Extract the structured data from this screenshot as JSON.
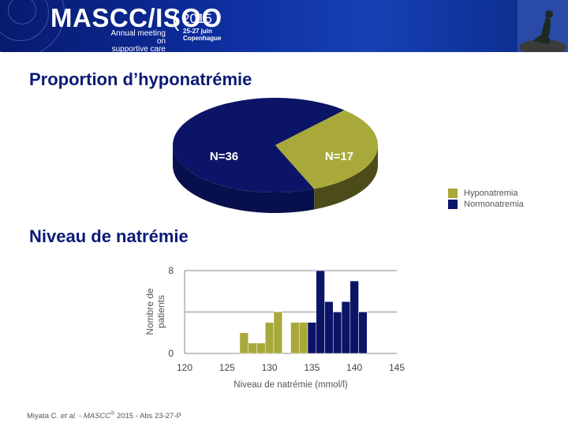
{
  "banner": {
    "brand": "MASCC/ISOO",
    "subtitle_line1": "Annual meeting on",
    "subtitle_line2": "supportive care in cancer",
    "year": "2015",
    "dates": "25-27 juin",
    "city": "Copenhague"
  },
  "section1": {
    "title": "Proportion d’hyponatrémie"
  },
  "section2": {
    "title": "Niveau de natrémie"
  },
  "legend": [
    {
      "label": "Hyponatremia",
      "color": "#a9a93b"
    },
    {
      "label": "Normonatremia",
      "color": "#0b1466"
    }
  ],
  "chart_data": [
    {
      "type": "pie",
      "slices": [
        {
          "label": "N=36",
          "series": "Normonatremia",
          "value": 36,
          "color": "#0b1466"
        },
        {
          "label": "N=17",
          "series": "Hyponatremia",
          "value": 17,
          "color": "#a9a93b"
        }
      ]
    },
    {
      "type": "bar",
      "xlabel": "Niveau de natrémie (mmol/l)",
      "ylabel": "Nombre de patients",
      "ylabel_lines": [
        "Nombre de",
        "patients"
      ],
      "xlim": [
        120,
        145
      ],
      "ylim": [
        0,
        8
      ],
      "xticks": [
        "120",
        "125",
        "130",
        "135",
        "140",
        "145"
      ],
      "yticks": [
        "0",
        "8"
      ],
      "gridlines": [
        4,
        8
      ],
      "series": [
        {
          "name": "Hyponatremia",
          "color": "#a9a93b",
          "bins": [
            [
              127,
              2
            ],
            [
              128,
              1
            ],
            [
              129,
              1
            ],
            [
              130,
              3
            ],
            [
              131,
              4
            ],
            [
              132,
              0
            ],
            [
              133,
              3
            ],
            [
              134,
              3
            ]
          ]
        },
        {
          "name": "Normonatremia",
          "color": "#0b1466",
          "bins": [
            [
              135,
              3
            ],
            [
              136,
              8
            ],
            [
              137,
              5
            ],
            [
              138,
              4
            ],
            [
              139,
              5
            ],
            [
              140,
              7
            ],
            [
              141,
              4
            ]
          ]
        }
      ]
    }
  ],
  "footer": {
    "authors": "Miyata C. ",
    "etal": "et al.",
    "sep": " - ",
    "conf": "MASCC",
    "reg": "®",
    "rest": " 2015 - Abs 23-27-P"
  }
}
